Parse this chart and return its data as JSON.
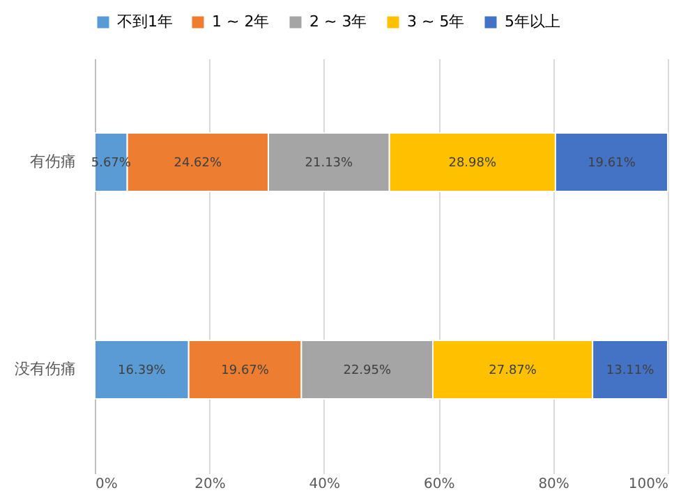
{
  "chart_data": {
    "type": "bar",
    "orientation": "horizontal",
    "stacked": true,
    "categories": [
      "有伤痛",
      "没有伤痛"
    ],
    "series": [
      {
        "name": "不到1年",
        "color": "#5b9bd5",
        "values": [
          5.67,
          16.39
        ],
        "value_labels": [
          "5.67%",
          "16.39%"
        ]
      },
      {
        "name": "1 ~ 2年",
        "color": "#ed7d31",
        "values": [
          24.62,
          19.67
        ],
        "value_labels": [
          "24.62%",
          "19.67%"
        ]
      },
      {
        "name": "2 ~ 3年",
        "color": "#a5a5a5",
        "values": [
          21.13,
          22.95
        ],
        "value_labels": [
          "21.13%",
          "22.95%"
        ]
      },
      {
        "name": "3 ~ 5年",
        "color": "#ffc000",
        "values": [
          28.98,
          27.87
        ],
        "value_labels": [
          "28.98%",
          "27.87%"
        ]
      },
      {
        "name": "5年以上",
        "color": "#4472c4",
        "values": [
          19.61,
          13.11
        ],
        "value_labels": [
          "19.61%",
          "13.11%"
        ]
      }
    ],
    "xlim": [
      0,
      100
    ],
    "xticks": [
      {
        "value": 0,
        "label": "0%"
      },
      {
        "value": 20,
        "label": "20%"
      },
      {
        "value": 40,
        "label": "40%"
      },
      {
        "value": 60,
        "label": "60%"
      },
      {
        "value": 80,
        "label": "80%"
      },
      {
        "value": 100,
        "label": "100%"
      }
    ],
    "grid": "x",
    "legend": "top"
  }
}
